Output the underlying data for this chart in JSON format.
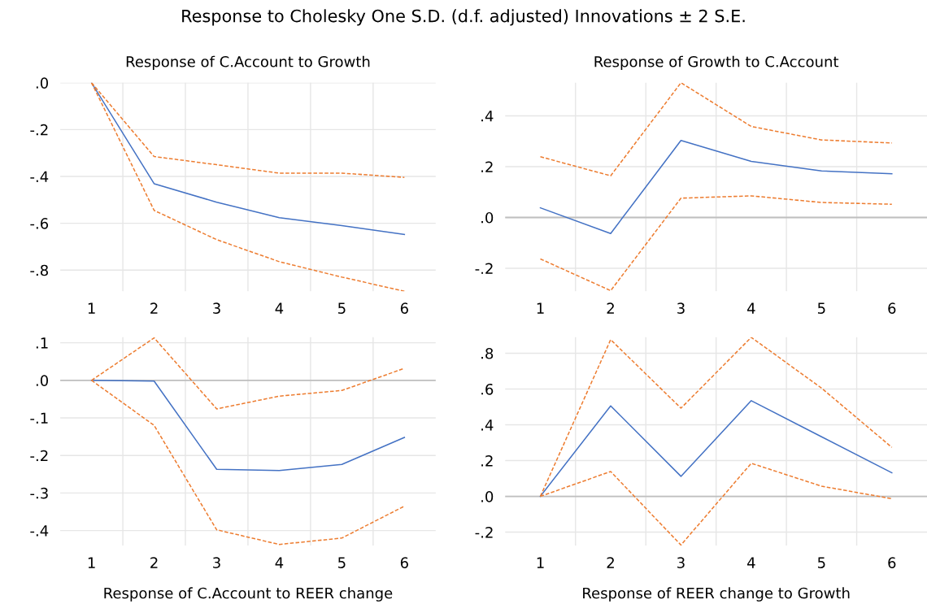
{
  "chart_data": [
    {
      "type": "line",
      "title": "Response of C.Account to Growth",
      "annotations": [
        "Response to Cholesky One S.D. (d.f. adjusted) Innovations ± 2 S.E."
      ],
      "categories": [
        "1",
        "2",
        "3",
        "4",
        "5",
        "6"
      ],
      "ylim": [
        -0.89,
        0
      ],
      "yticks": [
        {
          "value": 0,
          "label": ".0"
        },
        {
          "value": -0.2,
          "label": "-.2"
        },
        {
          "value": -0.4,
          "label": "-.4"
        },
        {
          "value": -0.6,
          "label": "-.6"
        },
        {
          "value": -0.8,
          "label": "-.8"
        }
      ],
      "grid": true,
      "series": [
        {
          "color": "#4472c4",
          "line_style": "solid",
          "values": [
            0,
            -0.431,
            -0.51,
            -0.576,
            -0.61,
            -0.648
          ]
        },
        {
          "color": "#ed7d31",
          "line_style": "dashed",
          "values": [
            0,
            -0.315,
            -0.35,
            -0.386,
            -0.386,
            -0.404
          ]
        },
        {
          "color": "#ed7d31",
          "line_style": "dashed",
          "values": [
            0,
            -0.545,
            -0.67,
            -0.764,
            -0.83,
            -0.89
          ]
        }
      ]
    },
    {
      "type": "line",
      "title": "Response of Growth to C.Account",
      "categories": [
        "1",
        "2",
        "3",
        "4",
        "5",
        "6"
      ],
      "ylim": [
        -0.29,
        0.53
      ],
      "yticks": [
        {
          "value": -0.2,
          "label": "-.2"
        },
        {
          "value": 0,
          "label": ".0"
        },
        {
          "value": 0.2,
          "label": ".2"
        },
        {
          "value": 0.4,
          "label": ".4"
        }
      ],
      "grid": true,
      "ref_lines": [
        {
          "axis": "y",
          "value": 0,
          "color": "#bfbfbf"
        }
      ],
      "series": [
        {
          "color": "#4472c4",
          "line_style": "solid",
          "values": [
            0.038,
            -0.063,
            0.303,
            0.221,
            0.183,
            0.172
          ]
        },
        {
          "color": "#ed7d31",
          "line_style": "dashed",
          "values": [
            0.239,
            0.164,
            0.53,
            0.358,
            0.305,
            0.293
          ]
        },
        {
          "color": "#ed7d31",
          "line_style": "dashed",
          "values": [
            -0.163,
            -0.288,
            0.076,
            0.085,
            0.059,
            0.052
          ]
        }
      ]
    },
    {
      "type": "line",
      "title": "Response of C.Account to REER change",
      "categories": [
        "1",
        "2",
        "3",
        "4",
        "5",
        "6"
      ],
      "ylim": [
        -0.44,
        0.115
      ],
      "yticks": [
        {
          "value": -0.4,
          "label": "-.4"
        },
        {
          "value": -0.3,
          "label": "-.3"
        },
        {
          "value": -0.2,
          "label": "-.2"
        },
        {
          "value": -0.1,
          "label": "-.1"
        },
        {
          "value": 0,
          "label": ".0"
        },
        {
          "value": 0.1,
          "label": ".1"
        }
      ],
      "grid": true,
      "ref_lines": [
        {
          "axis": "y",
          "value": 0,
          "color": "#bfbfbf"
        }
      ],
      "series": [
        {
          "color": "#4472c4",
          "line_style": "solid",
          "values": [
            0,
            -0.002,
            -0.237,
            -0.24,
            -0.224,
            -0.152
          ]
        },
        {
          "color": "#ed7d31",
          "line_style": "dashed",
          "values": [
            0,
            0.113,
            -0.076,
            -0.042,
            -0.027,
            0.032
          ]
        },
        {
          "color": "#ed7d31",
          "line_style": "dashed",
          "values": [
            0,
            -0.12,
            -0.398,
            -0.437,
            -0.42,
            -0.335
          ]
        }
      ]
    },
    {
      "type": "line",
      "title": "Response of REER change to Growth",
      "categories": [
        "1",
        "2",
        "3",
        "4",
        "5",
        "6"
      ],
      "ylim": [
        -0.275,
        0.89
      ],
      "yticks": [
        {
          "value": -0.2,
          "label": "-.2"
        },
        {
          "value": 0,
          "label": ".0"
        },
        {
          "value": 0.2,
          "label": ".2"
        },
        {
          "value": 0.4,
          "label": ".4"
        },
        {
          "value": 0.6,
          "label": ".6"
        },
        {
          "value": 0.8,
          "label": ".8"
        }
      ],
      "grid": true,
      "ref_lines": [
        {
          "axis": "y",
          "value": 0,
          "color": "#bfbfbf"
        }
      ],
      "series": [
        {
          "color": "#4472c4",
          "line_style": "solid",
          "values": [
            0,
            0.506,
            0.112,
            0.535,
            0.333,
            0.132
          ]
        },
        {
          "color": "#ed7d31",
          "line_style": "dashed",
          "values": [
            0,
            0.876,
            0.493,
            0.889,
            0.605,
            0.274
          ]
        },
        {
          "color": "#ed7d31",
          "line_style": "dashed",
          "values": [
            0,
            0.139,
            -0.272,
            0.185,
            0.057,
            -0.013
          ]
        }
      ]
    }
  ]
}
